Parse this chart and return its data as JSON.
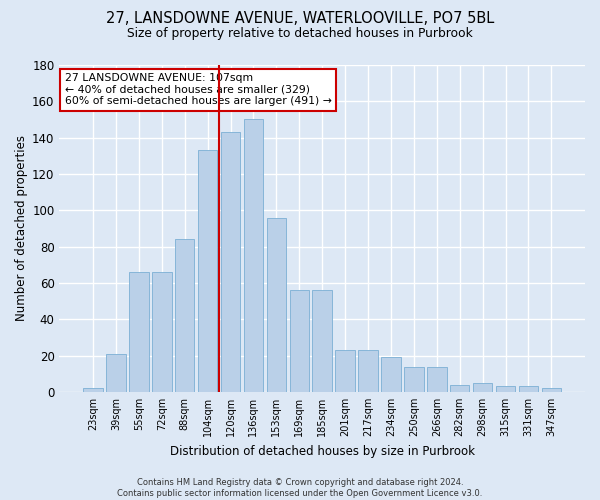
{
  "title_line1": "27, LANSDOWNE AVENUE, WATERLOOVILLE, PO7 5BL",
  "title_line2": "Size of property relative to detached houses in Purbrook",
  "xlabel": "Distribution of detached houses by size in Purbrook",
  "ylabel": "Number of detached properties",
  "categories": [
    "23sqm",
    "39sqm",
    "55sqm",
    "72sqm",
    "88sqm",
    "104sqm",
    "120sqm",
    "136sqm",
    "153sqm",
    "169sqm",
    "185sqm",
    "201sqm",
    "217sqm",
    "234sqm",
    "250sqm",
    "266sqm",
    "282sqm",
    "298sqm",
    "315sqm",
    "331sqm",
    "347sqm"
  ],
  "values": [
    2,
    21,
    66,
    66,
    84,
    133,
    143,
    150,
    96,
    56,
    56,
    23,
    23,
    19,
    14,
    14,
    4,
    5,
    3,
    3,
    2
  ],
  "bar_color": "#bad0e8",
  "bar_edge_color": "#7bafd4",
  "vline_color": "#cc0000",
  "vline_pos": 5.5,
  "annotation_text": "27 LANSDOWNE AVENUE: 107sqm\n← 40% of detached houses are smaller (329)\n60% of semi-detached houses are larger (491) →",
  "annotation_box_facecolor": "#ffffff",
  "annotation_box_edgecolor": "#cc0000",
  "ylim": [
    0,
    180
  ],
  "yticks": [
    0,
    20,
    40,
    60,
    80,
    100,
    120,
    140,
    160,
    180
  ],
  "footer_line1": "Contains HM Land Registry data © Crown copyright and database right 2024.",
  "footer_line2": "Contains public sector information licensed under the Open Government Licence v3.0.",
  "bg_color": "#dde8f5"
}
